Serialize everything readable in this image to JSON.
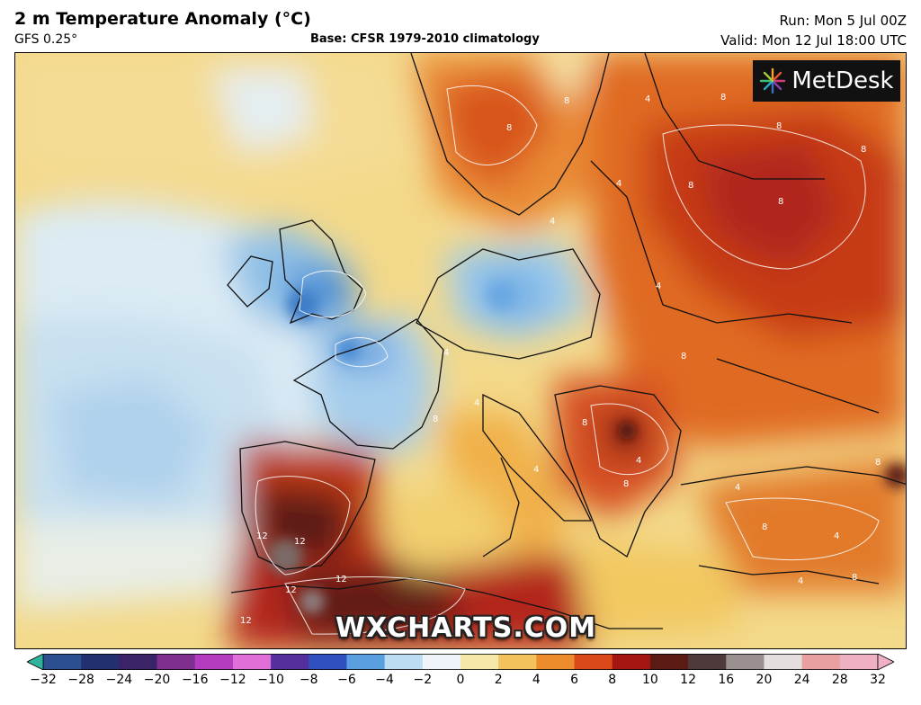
{
  "header": {
    "title": "2 m Temperature Anomaly (°C)",
    "model": "GFS 0.25°",
    "base": "Base: CFSR 1979-2010 climatology",
    "run": "Run: Mon 5 Jul 00Z",
    "valid": "Valid: Mon 12 Jul 18:00 UTC"
  },
  "logo": {
    "text": "MetDesk",
    "icon": "starburst-icon"
  },
  "watermark": "WXCHARTS.COM",
  "colorbar": {
    "ticks": [
      "−32",
      "−28",
      "−24",
      "−20",
      "−16",
      "−12",
      "−10",
      "−8",
      "−6",
      "−4",
      "−2",
      "0",
      "2",
      "4",
      "6",
      "8",
      "10",
      "12",
      "16",
      "20",
      "24",
      "28",
      "32"
    ],
    "colors": [
      "#2fb39a",
      "#2c4f90",
      "#233070",
      "#3b2368",
      "#7e2f8f",
      "#b43cc0",
      "#e070d8",
      "#55309c",
      "#3050c0",
      "#5aa0e0",
      "#bcdcf2",
      "#eef4fa",
      "#f6e8a8",
      "#f3c25c",
      "#ec8c2c",
      "#d84818",
      "#a41612",
      "#5c1a14",
      "#4e3a3a",
      "#9a9090",
      "#e4dede",
      "#e8a0a0",
      "#f0b0c4"
    ]
  },
  "map_labels": [
    {
      "text": "4"
    },
    {
      "text": "8"
    },
    {
      "text": "8"
    },
    {
      "text": "8"
    },
    {
      "text": "4"
    },
    {
      "text": "8"
    },
    {
      "text": "4"
    },
    {
      "text": "8"
    },
    {
      "text": "8"
    },
    {
      "text": "4"
    },
    {
      "text": "8"
    },
    {
      "text": "4"
    },
    {
      "text": "8"
    },
    {
      "text": "4"
    },
    {
      "text": "8"
    },
    {
      "text": "4"
    },
    {
      "text": "8"
    },
    {
      "text": "12"
    },
    {
      "text": "12"
    },
    {
      "text": "12"
    },
    {
      "text": "12"
    },
    {
      "text": "12"
    },
    {
      "text": "4"
    },
    {
      "text": "8"
    },
    {
      "text": "4"
    },
    {
      "text": "8"
    },
    {
      "text": "4"
    },
    {
      "text": "8"
    },
    {
      "text": "4"
    },
    {
      "text": "8"
    }
  ]
}
